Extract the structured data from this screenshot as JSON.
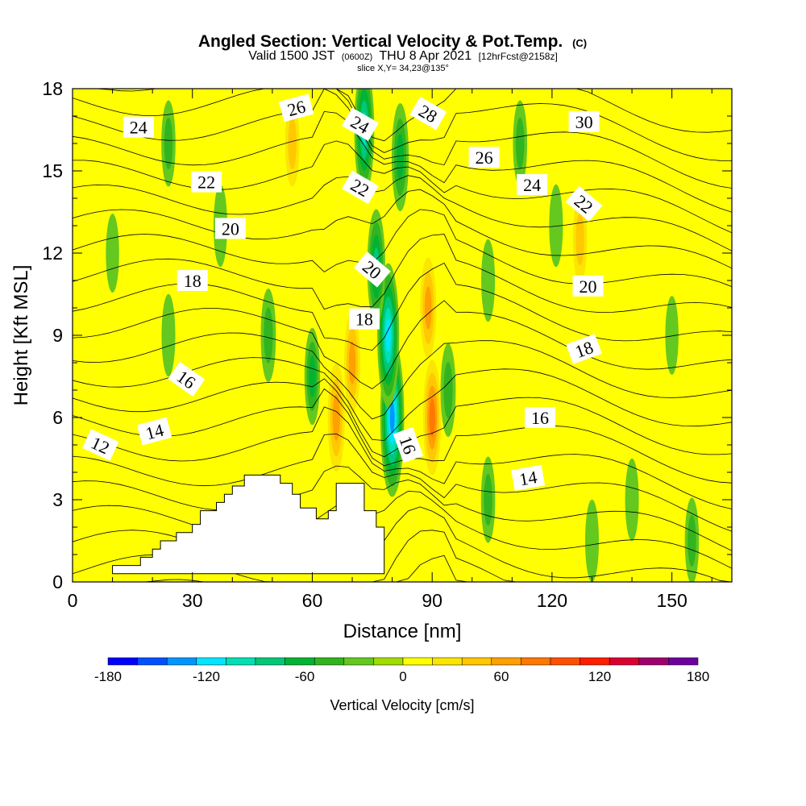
{
  "title": {
    "line1_main": "Angled Section: Vertical Velocity & Pot.Temp.",
    "line1_unit": "(C)",
    "line2_a": "Valid 1500 JST",
    "line2_b": "(0600Z)",
    "line2_c": "THU 8 Apr 2021",
    "line2_d": "[12hrFcst@2158z]",
    "line3": "slice X,Y= 34,23@135°"
  },
  "chart_data": {
    "type": "heatmap",
    "xlabel": "Distance [nm]",
    "ylabel": "Height [Kft MSL]",
    "xlim": [
      0,
      165
    ],
    "ylim": [
      0,
      18
    ],
    "x_ticks": [
      0,
      30,
      60,
      90,
      120,
      150
    ],
    "x_tick_labels": [
      "0",
      "30",
      "60",
      "90",
      "120",
      "150"
    ],
    "y_ticks": [
      0,
      3,
      6,
      9,
      12,
      15,
      18
    ],
    "y_tick_labels": [
      "0",
      "3",
      "6",
      "9",
      "12",
      "15",
      "18"
    ],
    "colorbar": {
      "label": "Vertical Velocity [cm/s]",
      "min": -180,
      "max": 180,
      "ticks": [
        -180,
        -120,
        -60,
        0,
        60,
        120,
        180
      ],
      "tick_labels": [
        "-180",
        "-120",
        "-60",
        "0",
        "60",
        "120",
        "180"
      ],
      "colors": [
        "#0000ff",
        "#0050ff",
        "#0096ff",
        "#00e6ff",
        "#00e0b4",
        "#00c878",
        "#00b432",
        "#32b41e",
        "#64c81e",
        "#a0dc00",
        "#ffff00",
        "#fae600",
        "#ffc800",
        "#ffa000",
        "#ff7800",
        "#ff5000",
        "#ff1e00",
        "#dc0032",
        "#a0006e",
        "#6e00a0"
      ]
    },
    "terrain": [
      [
        10,
        0.3
      ],
      [
        10,
        0.6
      ],
      [
        17,
        0.6
      ],
      [
        17,
        0.9
      ],
      [
        20,
        0.9
      ],
      [
        20,
        1.2
      ],
      [
        22,
        1.2
      ],
      [
        22,
        1.5
      ],
      [
        26,
        1.5
      ],
      [
        26,
        1.8
      ],
      [
        30,
        1.8
      ],
      [
        30,
        2.1
      ],
      [
        32,
        2.1
      ],
      [
        32,
        2.6
      ],
      [
        36,
        2.6
      ],
      [
        36,
        2.9
      ],
      [
        38,
        2.9
      ],
      [
        38,
        3.2
      ],
      [
        40,
        3.2
      ],
      [
        40,
        3.5
      ],
      [
        43,
        3.5
      ],
      [
        43,
        3.9
      ],
      [
        52,
        3.9
      ],
      [
        52,
        3.6
      ],
      [
        55,
        3.6
      ],
      [
        55,
        3.2
      ],
      [
        57,
        3.2
      ],
      [
        57,
        2.7
      ],
      [
        61,
        2.7
      ],
      [
        61,
        2.3
      ],
      [
        64,
        2.3
      ],
      [
        64,
        2.6
      ],
      [
        66,
        2.6
      ],
      [
        66,
        3.6
      ],
      [
        73,
        3.6
      ],
      [
        73,
        2.6
      ],
      [
        76,
        2.6
      ],
      [
        76,
        2.0
      ],
      [
        78,
        2.0
      ],
      [
        78,
        0.3
      ]
    ],
    "contour_labels": [
      {
        "value": "12",
        "x": 7,
        "y": 5.0,
        "angle": 25
      },
      {
        "value": "14",
        "x": 20.5,
        "y": 5.5,
        "angle": -15
      },
      {
        "value": "16",
        "x": 28.5,
        "y": 7.4,
        "angle": 35
      },
      {
        "value": "18",
        "x": 30,
        "y": 11.0,
        "angle": 0
      },
      {
        "value": "20",
        "x": 39.5,
        "y": 12.9,
        "angle": 0
      },
      {
        "value": "22",
        "x": 33.5,
        "y": 14.6,
        "angle": 0
      },
      {
        "value": "24",
        "x": 16.5,
        "y": 16.6,
        "angle": 0
      },
      {
        "value": "26",
        "x": 56,
        "y": 17.3,
        "angle": -15
      },
      {
        "value": "24",
        "x": 72,
        "y": 16.7,
        "angle": 30
      },
      {
        "value": "28",
        "x": 89,
        "y": 17.1,
        "angle": 30
      },
      {
        "value": "22",
        "x": 72,
        "y": 14.4,
        "angle": 30
      },
      {
        "value": "20",
        "x": 75,
        "y": 11.4,
        "angle": 40
      },
      {
        "value": "18",
        "x": 73,
        "y": 9.6,
        "angle": 0
      },
      {
        "value": "16",
        "x": 84,
        "y": 5.0,
        "angle": 70
      },
      {
        "value": "26",
        "x": 103,
        "y": 15.5,
        "angle": 0
      },
      {
        "value": "30",
        "x": 128,
        "y": 16.8,
        "angle": 0
      },
      {
        "value": "24",
        "x": 115,
        "y": 14.5,
        "angle": 0
      },
      {
        "value": "22",
        "x": 128,
        "y": 13.8,
        "angle": 40
      },
      {
        "value": "20",
        "x": 129,
        "y": 10.8,
        "angle": 0
      },
      {
        "value": "18",
        "x": 128,
        "y": 8.5,
        "angle": -20
      },
      {
        "value": "16",
        "x": 117,
        "y": 6.0,
        "angle": 0
      },
      {
        "value": "14",
        "x": 114,
        "y": 3.8,
        "angle": -10
      }
    ],
    "features": [
      {
        "x": 80,
        "y": 6.0,
        "w": -130
      },
      {
        "x": 79,
        "y": 9.0,
        "w": -110
      },
      {
        "x": 76,
        "y": 11.5,
        "w": -70
      },
      {
        "x": 73,
        "y": 16.5,
        "w": -90
      },
      {
        "x": 82,
        "y": 15.5,
        "w": -60
      },
      {
        "x": 70,
        "y": 8.0,
        "w": 50
      },
      {
        "x": 66,
        "y": 6.0,
        "w": 60
      },
      {
        "x": 90,
        "y": 6.0,
        "w": 70
      },
      {
        "x": 89,
        "y": 10.0,
        "w": 50
      },
      {
        "x": 94,
        "y": 7.0,
        "w": -40
      },
      {
        "x": 49,
        "y": 9.0,
        "w": -40
      },
      {
        "x": 60,
        "y": 7.5,
        "w": -45
      },
      {
        "x": 24,
        "y": 9.0,
        "w": -25
      },
      {
        "x": 10,
        "y": 12.0,
        "w": -20
      },
      {
        "x": 24,
        "y": 16.0,
        "w": -30
      },
      {
        "x": 37,
        "y": 13.0,
        "w": -25
      },
      {
        "x": 55,
        "y": 16.0,
        "w": 30
      },
      {
        "x": 104,
        "y": 11.0,
        "w": -25
      },
      {
        "x": 121,
        "y": 13.0,
        "w": -25
      },
      {
        "x": 112,
        "y": 16.0,
        "w": -30
      },
      {
        "x": 127,
        "y": 12.5,
        "w": 30
      },
      {
        "x": 140,
        "y": 3.0,
        "w": -25
      },
      {
        "x": 155,
        "y": 1.5,
        "w": -30
      },
      {
        "x": 130,
        "y": 1.5,
        "w": -25
      },
      {
        "x": 150,
        "y": 9.0,
        "w": -20
      },
      {
        "x": 104,
        "y": 3.0,
        "w": -30
      }
    ]
  }
}
